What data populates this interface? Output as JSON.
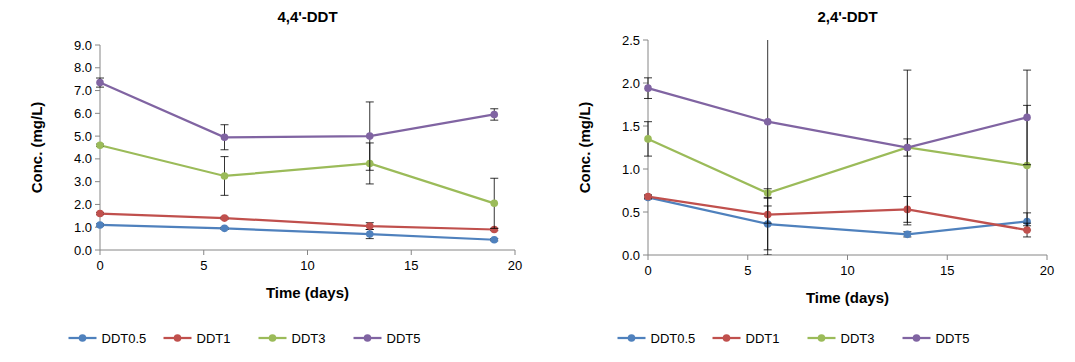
{
  "chart_data": [
    {
      "type": "line",
      "title": "4,4'-DDT",
      "x_label": "Time (days)",
      "y_label": "Conc. (mg/L)",
      "x": [
        0,
        6,
        13,
        19
      ],
      "xlim": [
        0,
        20
      ],
      "xticks": [
        0,
        5,
        10,
        15,
        20
      ],
      "ylim": [
        0,
        9
      ],
      "yticks": [
        {
          "value": 0,
          "label": "0.0"
        },
        {
          "value": 1,
          "label": "1.0"
        },
        {
          "value": 2,
          "label": "2.0"
        },
        {
          "value": 3,
          "label": "3.0"
        },
        {
          "value": 4,
          "label": "4.0"
        },
        {
          "value": 5,
          "label": "5.0"
        },
        {
          "value": 6,
          "label": "6.0"
        },
        {
          "value": 7,
          "label": "7.0"
        },
        {
          "value": 8,
          "label": "8.0"
        },
        {
          "value": 9,
          "label": "9.0"
        }
      ],
      "grid": false,
      "legend": "bottom",
      "series": [
        {
          "name": "DDT0.5",
          "color": "#4f81bd",
          "marker": "circle",
          "line_style": "solid",
          "values": [
            1.1,
            0.95,
            0.7,
            0.45
          ],
          "errors": [
            0.05,
            0.05,
            0.2,
            0.05
          ]
        },
        {
          "name": "DDT1",
          "color": "#c0504d",
          "marker": "circle",
          "line_style": "solid",
          "values": [
            1.6,
            1.4,
            1.05,
            0.9
          ],
          "errors": [
            0.05,
            0.05,
            0.15,
            0.05
          ]
        },
        {
          "name": "DDT3",
          "color": "#9bbb59",
          "marker": "circle",
          "line_style": "solid",
          "values": [
            4.6,
            3.25,
            3.8,
            2.05
          ],
          "errors": [
            0.05,
            0.85,
            0.9,
            1.1
          ]
        },
        {
          "name": "DDT5",
          "color": "#8064a2",
          "marker": "circle",
          "line_style": "solid",
          "values": [
            7.35,
            4.95,
            5.0,
            5.95
          ],
          "errors": [
            0.2,
            0.55,
            1.5,
            0.25
          ]
        }
      ]
    },
    {
      "type": "line",
      "title": "2,4'-DDT",
      "x_label": "Time (days)",
      "y_label": "Conc. (mg/L)",
      "x": [
        0,
        6,
        13,
        19
      ],
      "xlim": [
        0,
        20
      ],
      "xticks": [
        0,
        5,
        10,
        15,
        20
      ],
      "ylim": [
        0,
        2.5
      ],
      "yticks": [
        {
          "value": 0,
          "label": "0.0"
        },
        {
          "value": 0.5,
          "label": "0.5"
        },
        {
          "value": 1,
          "label": "1.0"
        },
        {
          "value": 1.5,
          "label": "1.5"
        },
        {
          "value": 2,
          "label": "2.0"
        },
        {
          "value": 2.5,
          "label": "2.5"
        }
      ],
      "grid": false,
      "legend": "bottom",
      "series": [
        {
          "name": "DDT0.5",
          "color": "#4f81bd",
          "marker": "circle",
          "line_style": "solid",
          "values": [
            0.67,
            0.36,
            0.24,
            0.39
          ],
          "errors": [
            0.02,
            0.3,
            0.03,
            0.1
          ]
        },
        {
          "name": "DDT1",
          "color": "#c0504d",
          "marker": "circle",
          "line_style": "solid",
          "values": [
            0.68,
            0.47,
            0.53,
            0.29
          ],
          "errors": [
            0.02,
            0.1,
            0.15,
            0.08
          ]
        },
        {
          "name": "DDT3",
          "color": "#9bbb59",
          "marker": "circle",
          "line_style": "solid",
          "values": [
            1.35,
            0.72,
            1.25,
            1.04
          ],
          "errors": [
            0.2,
            0.05,
            0.9,
            0.7
          ]
        },
        {
          "name": "DDT5",
          "color": "#8064a2",
          "marker": "circle",
          "line_style": "solid",
          "values": [
            1.94,
            1.55,
            1.25,
            1.6
          ],
          "errors": [
            0.12,
            1.55,
            0.1,
            0.55
          ]
        }
      ]
    }
  ]
}
